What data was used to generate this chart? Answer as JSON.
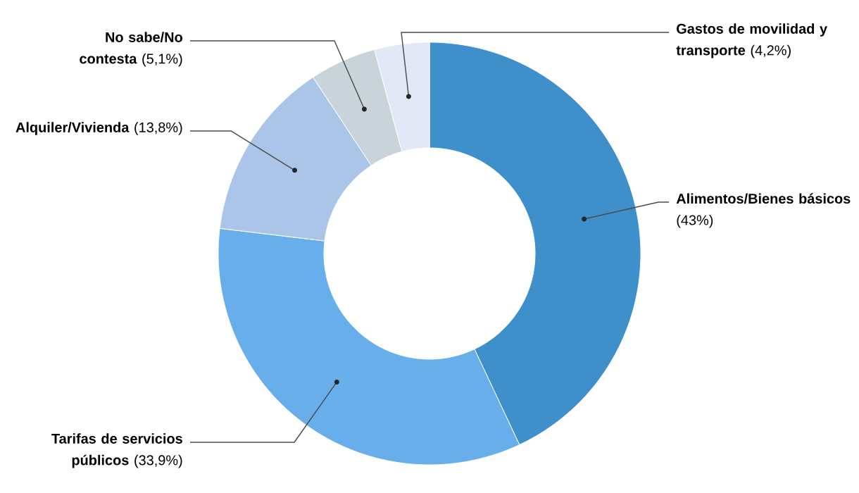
{
  "chart_data": {
    "type": "donut",
    "categories": [
      "Alimentos/Bienes básicos",
      "Tarifas de servicios públicos",
      "Alquiler/Vivienda",
      "No sabe/No contesta",
      "Gastos de movilidad y transporte"
    ],
    "values": [
      43,
      33.9,
      13.8,
      5.1,
      4.2
    ],
    "colors": [
      "#3f8fcb",
      "#68aeeb",
      "#abc5e8",
      "#c8d3da",
      "#e2e8f5"
    ],
    "value_labels": [
      "(43%)",
      "(33,9%)",
      "(13,8%)",
      "(5,1%)",
      "(4,2%)"
    ]
  }
}
